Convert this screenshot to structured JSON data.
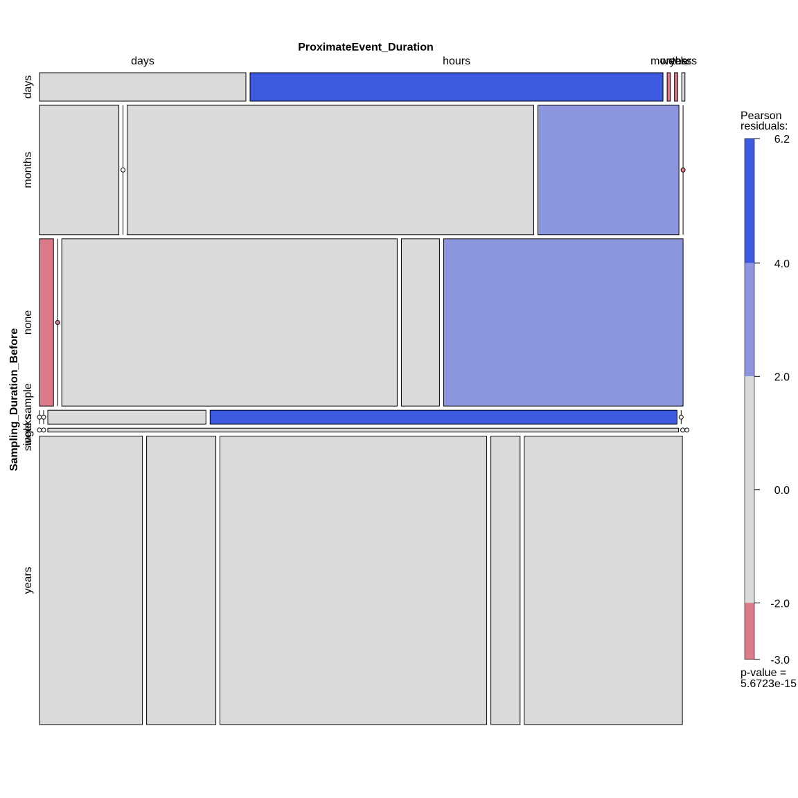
{
  "chart_data": {
    "type": "mosaic",
    "x_variable": "ProximateEvent_Duration",
    "y_variable": "Sampling_Duration_Before",
    "x_levels": [
      "days",
      "hours",
      "months",
      "weeks",
      "years"
    ],
    "y_levels": [
      "days",
      "months",
      "none",
      "single sample",
      "weeks",
      "years"
    ],
    "y_level_labels": [
      "days",
      "months",
      "none",
      "single sample",
      "weeks",
      "years"
    ],
    "row_props": [
      0.045,
      0.205,
      0.265,
      0.022,
      0.006,
      0.457
    ],
    "cells": [
      [
        0.325,
        0.65,
        0.005,
        0.005,
        0.005
      ],
      [
        0.125,
        0.0,
        0.64,
        0.222,
        0.0
      ],
      [
        0.022,
        0.0,
        0.528,
        0.06,
        0.377
      ],
      [
        0.0,
        0.0,
        0.249,
        0.735,
        0.0
      ],
      [
        0.0,
        0.0,
        0.993,
        0.0,
        0.0
      ],
      [
        0.162,
        0.109,
        0.42,
        0.046,
        0.249
      ]
    ],
    "cell_fills": [
      [
        "gray",
        "blue_strong",
        "red",
        "red",
        "gray"
      ],
      [
        "gray",
        "gray",
        "gray",
        "blue_light",
        "red"
      ],
      [
        "red",
        "red",
        "gray",
        "gray",
        "blue_light"
      ],
      [
        "gray",
        "gray",
        "gray",
        "blue_strong",
        "gray"
      ],
      [
        "gray",
        "gray",
        "gray",
        "gray",
        "gray"
      ],
      [
        "gray",
        "gray",
        "gray",
        "gray",
        "gray"
      ]
    ],
    "colors": {
      "blue_strong": "#3d5ae0",
      "blue_light": "#8c96de",
      "gray": "#dadada",
      "red": "#db7b89"
    },
    "legend": {
      "title_line1": "Pearson",
      "title_line2": "residuals:",
      "breaks": [
        -3.0,
        -2.0,
        2.0,
        4.0,
        6.2
      ],
      "tick_labels": [
        "6.2",
        "4.0",
        "2.0",
        "0.0",
        "-2.0",
        "-3.0"
      ],
      "tick_values": [
        6.2,
        4.0,
        2.0,
        0.0,
        -2.0,
        -3.0
      ],
      "segments": [
        {
          "from": 4.0,
          "to": 6.2,
          "color": "#3d5ae0"
        },
        {
          "from": 2.0,
          "to": 4.0,
          "color": "#8c96de"
        },
        {
          "from": -2.0,
          "to": 2.0,
          "color": "#dadada"
        },
        {
          "from": -3.0,
          "to": -2.0,
          "color": "#db7b89"
        }
      ],
      "pvalue_line1": "p-value =",
      "pvalue_line2": "5.6723e-15"
    }
  }
}
